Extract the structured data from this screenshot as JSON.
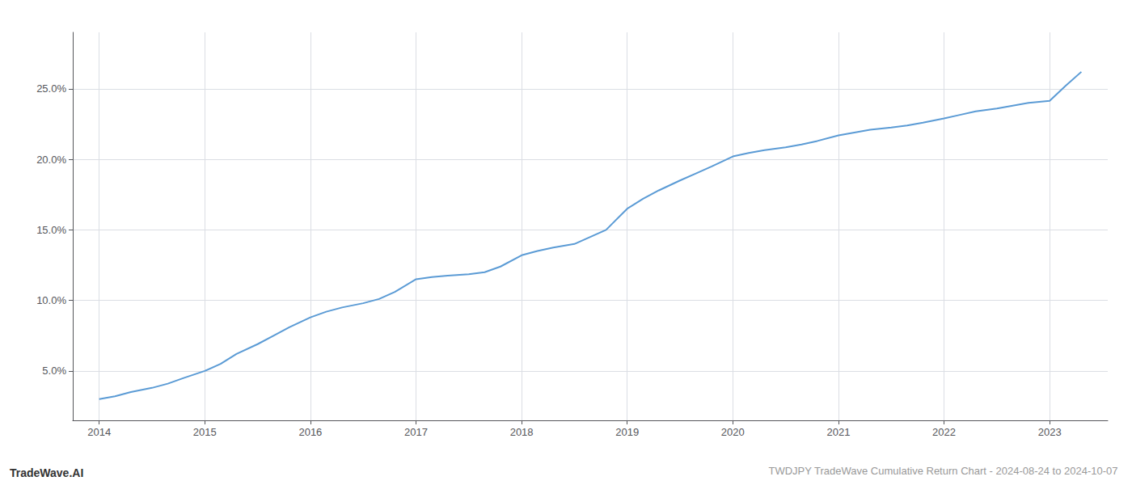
{
  "chart_data": {
    "type": "line",
    "title": "TWDJPY TradeWave Cumulative Return Chart - 2024-08-24 to 2024-10-07",
    "annotations": [
      "TradeWave.AI"
    ],
    "x": [
      2014.0,
      2014.15,
      2014.3,
      2014.5,
      2014.65,
      2014.8,
      2015.0,
      2015.15,
      2015.3,
      2015.5,
      2015.65,
      2015.8,
      2016.0,
      2016.15,
      2016.3,
      2016.5,
      2016.65,
      2016.8,
      2017.0,
      2017.15,
      2017.3,
      2017.5,
      2017.65,
      2017.8,
      2018.0,
      2018.15,
      2018.3,
      2018.5,
      2018.65,
      2018.8,
      2019.0,
      2019.15,
      2019.3,
      2019.5,
      2019.65,
      2019.8,
      2020.0,
      2020.15,
      2020.3,
      2020.5,
      2020.65,
      2020.8,
      2021.0,
      2021.15,
      2021.3,
      2021.5,
      2021.65,
      2021.8,
      2022.0,
      2022.15,
      2022.3,
      2022.5,
      2022.65,
      2022.8,
      2023.0,
      2023.15,
      2023.3
    ],
    "values": [
      3.0,
      3.2,
      3.5,
      3.8,
      4.1,
      4.5,
      5.0,
      5.5,
      6.2,
      6.9,
      7.5,
      8.1,
      8.8,
      9.2,
      9.5,
      9.8,
      10.1,
      10.6,
      11.5,
      11.65,
      11.75,
      11.85,
      12.0,
      12.4,
      13.2,
      13.5,
      13.75,
      14.0,
      14.5,
      15.0,
      16.5,
      17.2,
      17.8,
      18.5,
      19.0,
      19.5,
      20.2,
      20.45,
      20.65,
      20.85,
      21.05,
      21.3,
      21.7,
      21.9,
      22.1,
      22.25,
      22.4,
      22.6,
      22.9,
      23.15,
      23.4,
      23.6,
      23.8,
      24.0,
      24.15,
      25.2,
      26.2
    ],
    "color": "#5b9bd5",
    "xlim": [
      2013.75,
      2023.55
    ],
    "xticks": [
      2014,
      2015,
      2016,
      2017,
      2018,
      2019,
      2020,
      2021,
      2022,
      2023
    ],
    "ylim": [
      1.5,
      29.0
    ],
    "yticks": [
      {
        "value": 5.0,
        "label": "5.0%"
      },
      {
        "value": 10.0,
        "label": "10.0%"
      },
      {
        "value": 15.0,
        "label": "15.0%"
      },
      {
        "value": 20.0,
        "label": "20.0%"
      },
      {
        "value": 25.0,
        "label": "25.0%"
      }
    ],
    "grid": true
  }
}
